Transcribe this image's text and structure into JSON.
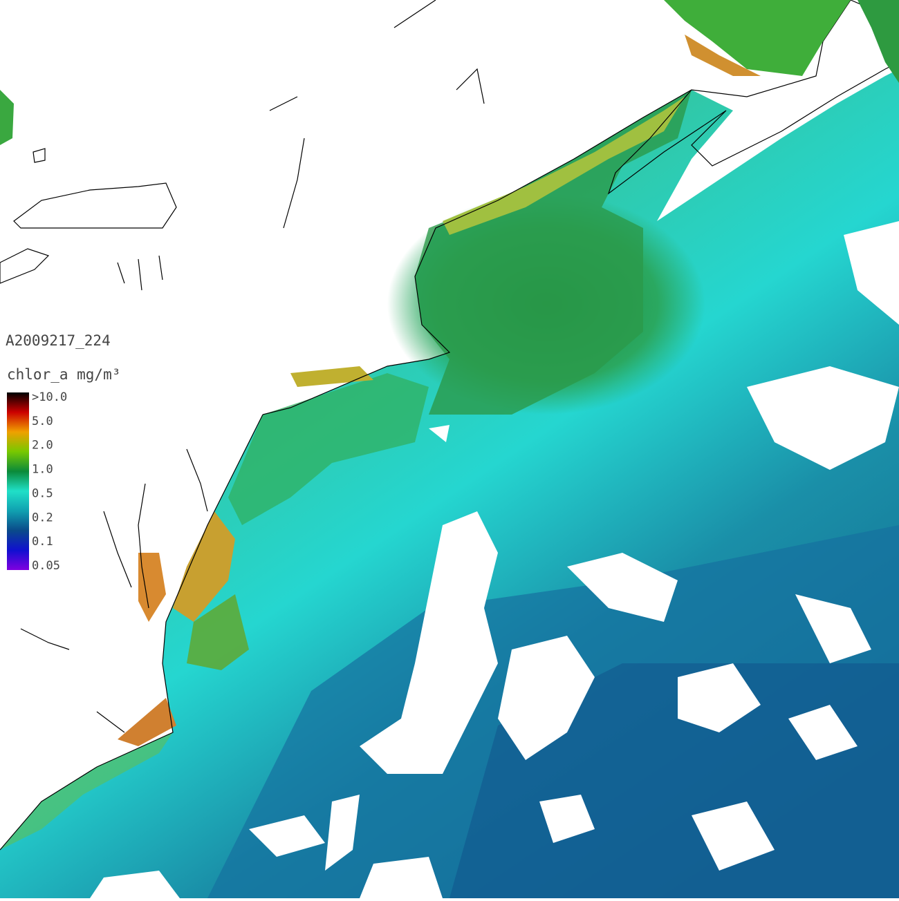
{
  "image_id": "A2009217_224",
  "colorbar": {
    "label": "chlor_a mg/m³",
    "ticks": [
      ">10.0",
      "5.0",
      "2.0",
      "1.0",
      "0.5",
      "0.2",
      "0.1",
      "0.05"
    ],
    "colors": [
      "#000000",
      "#cc0000",
      "#f0a000",
      "#78c800",
      "#0a8a3a",
      "#20e0c8",
      "#10a0b0",
      "#0a4a8a",
      "#1010d0",
      "#8000e0"
    ]
  }
}
